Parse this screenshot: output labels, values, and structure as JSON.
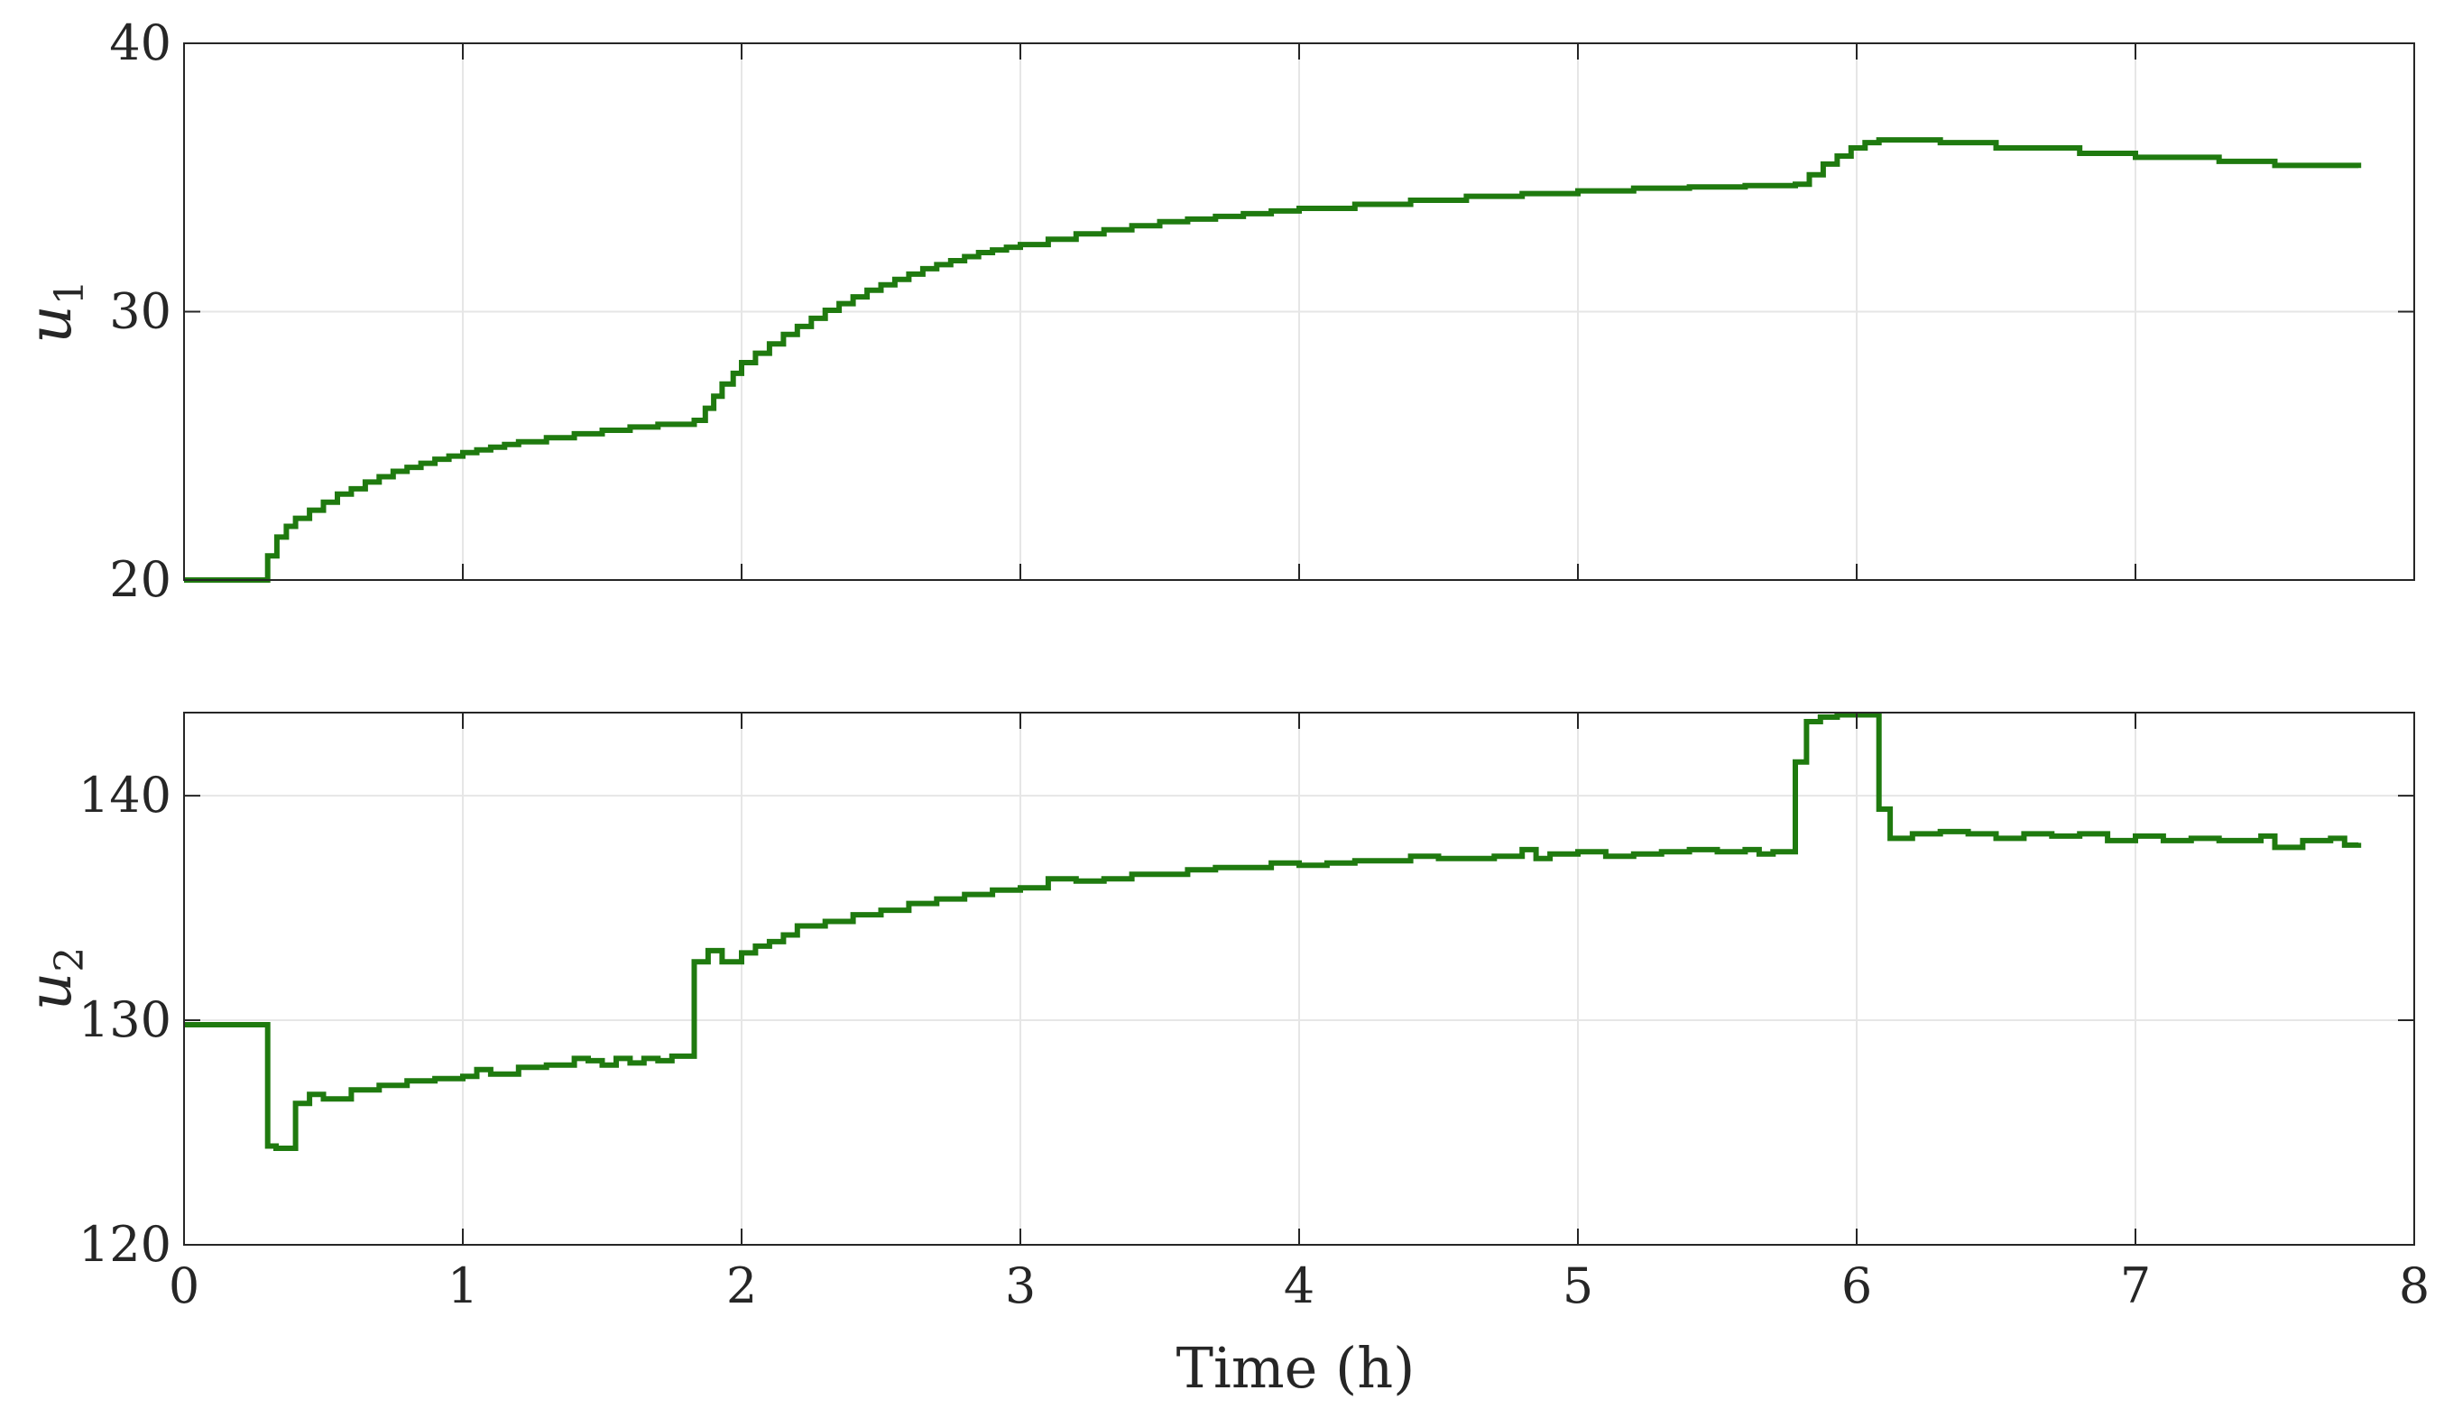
{
  "figure": {
    "xlabel": "Time (h)"
  },
  "chart_data": [
    {
      "type": "line",
      "step": true,
      "ylabel_main": "u",
      "ylabel_sub": "1",
      "xlim": [
        0,
        8
      ],
      "ylim": [
        20,
        40
      ],
      "x_ticks": [
        0,
        1,
        2,
        3,
        4,
        5,
        6,
        7,
        8
      ],
      "y_ticks": [
        20,
        30,
        40
      ],
      "y_tick_labels": [
        "20",
        "30",
        "40"
      ],
      "show_x_tick_labels": false,
      "grid": true,
      "line_color": "#1f7a0f",
      "series": [
        {
          "x": [
            0,
            0.3,
            0.333,
            0.367,
            0.4,
            0.45,
            0.5,
            0.55,
            0.6,
            0.65,
            0.7,
            0.75,
            0.8,
            0.85,
            0.9,
            0.95,
            1.0,
            1.05,
            1.1,
            1.15,
            1.2,
            1.3,
            1.4,
            1.5,
            1.6,
            1.7,
            1.83,
            1.87,
            1.9,
            1.93,
            1.97,
            2.0,
            2.05,
            2.1,
            2.15,
            2.2,
            2.25,
            2.3,
            2.35,
            2.4,
            2.45,
            2.5,
            2.55,
            2.6,
            2.65,
            2.7,
            2.75,
            2.8,
            2.85,
            2.9,
            2.95,
            3.0,
            3.1,
            3.2,
            3.3,
            3.4,
            3.5,
            3.6,
            3.7,
            3.8,
            3.9,
            4.0,
            4.2,
            4.4,
            4.6,
            4.8,
            5.0,
            5.2,
            5.4,
            5.6,
            5.78,
            5.83,
            5.88,
            5.93,
            5.98,
            6.03,
            6.08,
            6.3,
            6.5,
            6.8,
            7.0,
            7.3,
            7.5,
            7.8
          ],
          "y": [
            20,
            20.9,
            21.6,
            22.0,
            22.3,
            22.6,
            22.9,
            23.2,
            23.4,
            23.65,
            23.85,
            24.05,
            24.2,
            24.35,
            24.5,
            24.62,
            24.75,
            24.85,
            24.95,
            25.05,
            25.15,
            25.3,
            25.45,
            25.58,
            25.7,
            25.8,
            25.95,
            26.4,
            26.85,
            27.3,
            27.7,
            28.1,
            28.45,
            28.8,
            29.15,
            29.45,
            29.75,
            30.05,
            30.3,
            30.55,
            30.8,
            31.0,
            31.2,
            31.4,
            31.6,
            31.75,
            31.9,
            32.05,
            32.2,
            32.3,
            32.4,
            32.5,
            32.7,
            32.9,
            33.05,
            33.2,
            33.35,
            33.45,
            33.55,
            33.65,
            33.75,
            33.85,
            34.0,
            34.15,
            34.3,
            34.4,
            34.5,
            34.6,
            34.65,
            34.7,
            34.75,
            35.1,
            35.5,
            35.8,
            36.1,
            36.3,
            36.4,
            36.3,
            36.1,
            35.9,
            35.75,
            35.6,
            35.45,
            35.35
          ]
        }
      ]
    },
    {
      "type": "line",
      "step": true,
      "ylabel_main": "u",
      "ylabel_sub": "2",
      "xlim": [
        0,
        8
      ],
      "ylim": [
        120,
        143.7
      ],
      "x_ticks": [
        0,
        1,
        2,
        3,
        4,
        5,
        6,
        7,
        8
      ],
      "x_tick_labels": [
        "0",
        "1",
        "2",
        "3",
        "4",
        "5",
        "6",
        "7",
        "8"
      ],
      "y_ticks": [
        120,
        130,
        140
      ],
      "y_tick_labels": [
        "120",
        "130",
        "140"
      ],
      "show_x_tick_labels": true,
      "grid": true,
      "line_color": "#1f7a0f",
      "series": [
        {
          "x": [
            0,
            0.3,
            0.33,
            0.4,
            0.45,
            0.5,
            0.6,
            0.7,
            0.8,
            0.9,
            1.0,
            1.05,
            1.1,
            1.2,
            1.3,
            1.4,
            1.45,
            1.5,
            1.55,
            1.6,
            1.65,
            1.7,
            1.75,
            1.83,
            1.88,
            1.93,
            2.0,
            2.05,
            2.1,
            2.15,
            2.2,
            2.3,
            2.4,
            2.5,
            2.6,
            2.7,
            2.8,
            2.9,
            3.0,
            3.1,
            3.2,
            3.3,
            3.4,
            3.5,
            3.6,
            3.7,
            3.8,
            3.9,
            4.0,
            4.1,
            4.2,
            4.3,
            4.4,
            4.5,
            4.6,
            4.7,
            4.8,
            4.85,
            4.9,
            5.0,
            5.1,
            5.2,
            5.3,
            5.4,
            5.5,
            5.6,
            5.65,
            5.7,
            5.78,
            5.82,
            5.87,
            5.93,
            6.08,
            6.12,
            6.2,
            6.3,
            6.4,
            6.5,
            6.6,
            6.7,
            6.8,
            6.9,
            7.0,
            7.1,
            7.2,
            7.3,
            7.4,
            7.45,
            7.5,
            7.6,
            7.7,
            7.75,
            7.8
          ],
          "y": [
            129.8,
            124.4,
            124.3,
            126.3,
            126.7,
            126.5,
            126.9,
            127.1,
            127.3,
            127.4,
            127.5,
            127.8,
            127.6,
            127.9,
            128.0,
            128.3,
            128.2,
            128.0,
            128.3,
            128.1,
            128.3,
            128.2,
            128.4,
            132.6,
            133.1,
            132.6,
            133.0,
            133.3,
            133.5,
            133.8,
            134.2,
            134.4,
            134.7,
            134.9,
            135.2,
            135.4,
            135.6,
            135.8,
            135.9,
            136.3,
            136.2,
            136.3,
            136.5,
            136.5,
            136.7,
            136.8,
            136.8,
            137.0,
            136.9,
            137.0,
            137.1,
            137.1,
            137.3,
            137.2,
            137.2,
            137.3,
            137.6,
            137.2,
            137.4,
            137.5,
            137.3,
            137.4,
            137.5,
            137.6,
            137.5,
            137.6,
            137.4,
            137.5,
            141.5,
            143.3,
            143.5,
            143.6,
            139.4,
            138.1,
            138.3,
            138.4,
            138.3,
            138.1,
            138.3,
            138.2,
            138.3,
            138.0,
            138.2,
            138.0,
            138.1,
            138.0,
            138.0,
            138.2,
            137.7,
            138.0,
            138.1,
            137.8,
            137.9
          ]
        }
      ]
    }
  ]
}
